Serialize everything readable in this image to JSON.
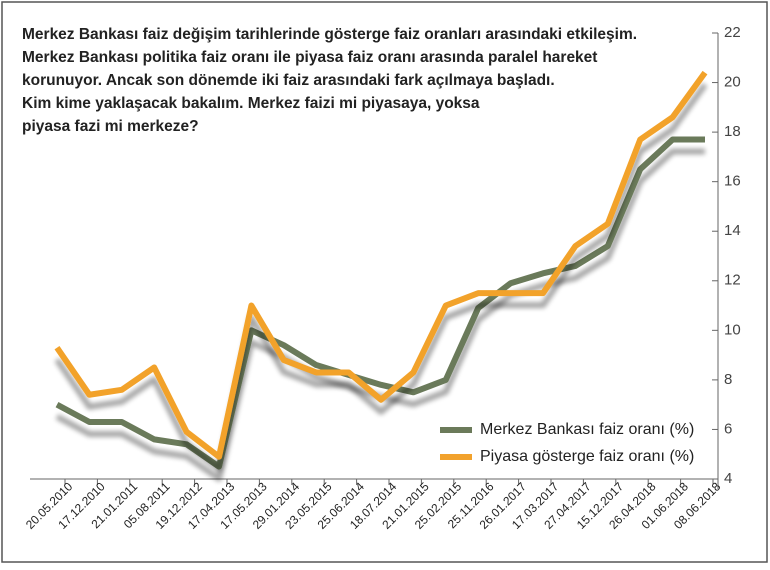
{
  "chart_data": {
    "type": "line",
    "title_lines": [
      "Merkez Bankası faiz değişim tarihlerinde gösterge faiz oranları arasındaki etkileşim.",
      "Merkez Bankası politika faiz oranı ile piyasa faiz oranı arasında paralel hareket",
      "korunuyor. Ancak son dönemde iki faiz arasındaki fark açılmaya başladı.",
      "Kim kime yaklaşacak bakalım. Merkez faizi mi piyasaya, yoksa",
      "piyasa fazi mi merkeze?"
    ],
    "categories": [
      "20.05.2010",
      "17.12.2010",
      "21.01.2011",
      "05.08.2011",
      "19.12.2012",
      "17.04.2013",
      "17.05.2013",
      "29.01.2014",
      "23.05.2015",
      "25.06.2014",
      "18.07.2014",
      "21.01.2015",
      "25.02.2015",
      "25.11.2016",
      "26.01.2017",
      "17.03.2017",
      "27.04.2017",
      "15.12.2017",
      "26.04.2018",
      "01.06.2018",
      "08.06.2018"
    ],
    "series": [
      {
        "name": "Merkez Bankası faiz oranı (%)",
        "color": "#6b7a5a",
        "values": [
          7.0,
          6.3,
          6.3,
          5.6,
          5.4,
          4.5,
          10.0,
          9.4,
          8.6,
          8.2,
          7.8,
          7.5,
          8.0,
          10.9,
          11.9,
          12.3,
          12.6,
          13.4,
          16.5,
          17.7,
          17.7
        ]
      },
      {
        "name": "Piyasa gösterge faiz oranı  (%)",
        "color": "#f2a22c",
        "values": [
          9.3,
          7.4,
          7.6,
          8.5,
          5.9,
          4.9,
          11.0,
          8.8,
          8.3,
          8.3,
          7.2,
          8.3,
          11.0,
          11.5,
          11.5,
          11.5,
          13.4,
          14.3,
          17.7,
          18.6,
          20.4
        ]
      }
    ],
    "ylim": [
      4,
      22
    ],
    "yticks": [
      4,
      6,
      8,
      10,
      12,
      14,
      16,
      18,
      20,
      22
    ],
    "yaxis_side": "right",
    "legend": "lower right"
  }
}
